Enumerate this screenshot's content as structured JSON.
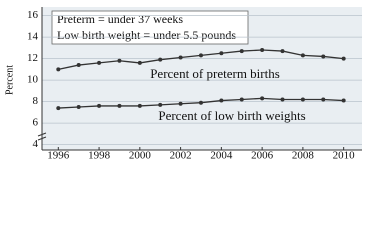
{
  "chart_data": {
    "type": "line",
    "notes": [
      "Preterm = under 37 weeks",
      "Low birth weight = under 5.5 pounds"
    ],
    "ylabel": "Percent",
    "x": [
      1996,
      1997,
      1998,
      1999,
      2000,
      2001,
      2002,
      2003,
      2004,
      2005,
      2006,
      2007,
      2008,
      2009,
      2010
    ],
    "series": [
      {
        "name": "Percent of preterm births",
        "color": "#333333",
        "values": [
          11.0,
          11.4,
          11.6,
          11.8,
          11.6,
          11.9,
          12.1,
          12.3,
          12.5,
          12.7,
          12.8,
          12.7,
          12.3,
          12.2,
          12.0
        ]
      },
      {
        "name": "Percent of low birth weights",
        "color": "#333333",
        "values": [
          7.4,
          7.5,
          7.6,
          7.6,
          7.6,
          7.7,
          7.8,
          7.9,
          8.1,
          8.2,
          8.3,
          8.2,
          8.2,
          8.2,
          8.1
        ]
      }
    ],
    "xlim": [
      1995.2,
      2010.9
    ],
    "xticks": [
      1996,
      1998,
      2000,
      2002,
      2004,
      2006,
      2008,
      2010
    ],
    "ylim": [
      3.5,
      16.8
    ],
    "yticks": [
      4,
      6,
      8,
      10,
      12,
      14,
      16
    ],
    "grid": true
  }
}
